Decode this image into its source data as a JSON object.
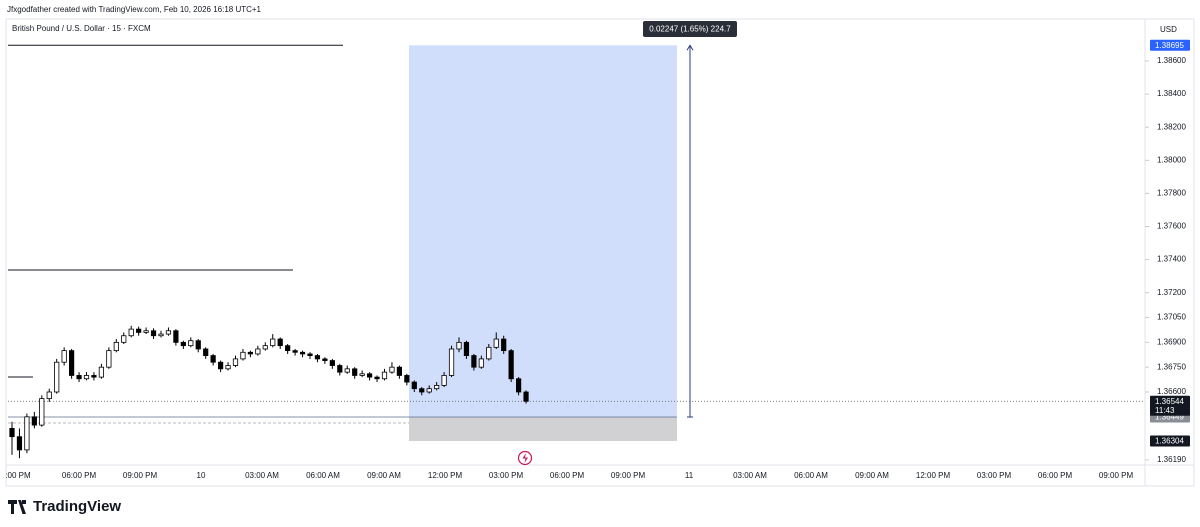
{
  "header": {
    "attribution": "Jfxgodfather created with TradingView.com, Feb 10, 2026 16:18 UTC+1"
  },
  "chart_data": {
    "type": "candlestick",
    "title": "British Pound / U.S. Dollar · 15 · FXCM",
    "currency": "USD",
    "up_color": "#ffffff",
    "down_color": "#000000",
    "x_labels": [
      ":00 PM",
      "06:00 PM",
      "09:00 PM",
      "10",
      "03:00 AM",
      "06:00 AM",
      "09:00 AM",
      "12:00 PM",
      "03:00 PM",
      "06:00 PM",
      "09:00 PM",
      "11",
      "03:00 AM",
      "06:00 AM",
      "09:00 AM",
      "12:00 PM",
      "03:00 PM",
      "06:00 PM",
      "09:00 PM"
    ],
    "ohlc": [
      [
        1.3638,
        1.3642,
        1.3622,
        1.3633
      ],
      [
        1.3633,
        1.3638,
        1.362,
        1.3625
      ],
      [
        1.3625,
        1.3647,
        1.3623,
        1.3645
      ],
      [
        1.3645,
        1.3648,
        1.3638,
        1.364
      ],
      [
        1.364,
        1.3658,
        1.3639,
        1.3656
      ],
      [
        1.3656,
        1.3662,
        1.3654,
        1.366
      ],
      [
        1.366,
        1.368,
        1.3659,
        1.3678
      ],
      [
        1.3678,
        1.3687,
        1.3676,
        1.3685
      ],
      [
        1.3685,
        1.3686,
        1.3668,
        1.367
      ],
      [
        1.367,
        1.3672,
        1.3666,
        1.3668
      ],
      [
        1.3668,
        1.3672,
        1.3667,
        1.367
      ],
      [
        1.367,
        1.3672,
        1.3667,
        1.3669
      ],
      [
        1.3669,
        1.3677,
        1.3668,
        1.3675
      ],
      [
        1.3675,
        1.3687,
        1.3674,
        1.3685
      ],
      [
        1.3685,
        1.3692,
        1.3684,
        1.369
      ],
      [
        1.369,
        1.3696,
        1.3689,
        1.3694
      ],
      [
        1.3694,
        1.37,
        1.3693,
        1.3698
      ],
      [
        1.3698,
        1.36995,
        1.3694,
        1.3696
      ],
      [
        1.3696,
        1.3699,
        1.3695,
        1.3697
      ],
      [
        1.3697,
        1.36985,
        1.3692,
        1.3694
      ],
      [
        1.3694,
        1.3697,
        1.3693,
        1.3695
      ],
      [
        1.3695,
        1.3699,
        1.3694,
        1.3697
      ],
      [
        1.3697,
        1.3698,
        1.3688,
        1.369
      ],
      [
        1.369,
        1.3691,
        1.3686,
        1.3688
      ],
      [
        1.3688,
        1.3693,
        1.3687,
        1.3691
      ],
      [
        1.3691,
        1.3692,
        1.3684,
        1.3686
      ],
      [
        1.3686,
        1.3687,
        1.368,
        1.3682
      ],
      [
        1.3682,
        1.3683,
        1.3676,
        1.3678
      ],
      [
        1.3678,
        1.3679,
        1.3672,
        1.3674
      ],
      [
        1.3674,
        1.3678,
        1.3673,
        1.3676
      ],
      [
        1.3676,
        1.3682,
        1.3675,
        1.368
      ],
      [
        1.368,
        1.3686,
        1.3679,
        1.3684
      ],
      [
        1.3684,
        1.3685,
        1.3681,
        1.3683
      ],
      [
        1.3683,
        1.3688,
        1.3682,
        1.3686
      ],
      [
        1.3686,
        1.369,
        1.3685,
        1.3688
      ],
      [
        1.3688,
        1.3695,
        1.3687,
        1.3692
      ],
      [
        1.3692,
        1.3693,
        1.3686,
        1.3688
      ],
      [
        1.3688,
        1.3689,
        1.3683,
        1.3685
      ],
      [
        1.3685,
        1.3686,
        1.3682,
        1.3684
      ],
      [
        1.3684,
        1.3685,
        1.3681,
        1.3683
      ],
      [
        1.3683,
        1.3684,
        1.368,
        1.3682
      ],
      [
        1.3682,
        1.3683,
        1.3678,
        1.368
      ],
      [
        1.368,
        1.3681,
        1.3677,
        1.3679
      ],
      [
        1.3679,
        1.368,
        1.3674,
        1.3676
      ],
      [
        1.3676,
        1.3677,
        1.367,
        1.3672
      ],
      [
        1.3672,
        1.3676,
        1.3671,
        1.3674
      ],
      [
        1.3674,
        1.3675,
        1.3668,
        1.367
      ],
      [
        1.367,
        1.3673,
        1.3669,
        1.3671
      ],
      [
        1.3671,
        1.3672,
        1.3667,
        1.3669
      ],
      [
        1.3669,
        1.367,
        1.3666,
        1.3668
      ],
      [
        1.3668,
        1.3674,
        1.3667,
        1.3672
      ],
      [
        1.3672,
        1.3678,
        1.3671,
        1.3675
      ],
      [
        1.3675,
        1.3676,
        1.3668,
        1.367
      ],
      [
        1.367,
        1.3671,
        1.3664,
        1.3666
      ],
      [
        1.3666,
        1.3667,
        1.366,
        1.3662
      ],
      [
        1.3662,
        1.3663,
        1.3658,
        1.366
      ],
      [
        1.366,
        1.3664,
        1.3659,
        1.3662
      ],
      [
        1.3662,
        1.3666,
        1.3661,
        1.3664
      ],
      [
        1.3664,
        1.3672,
        1.3663,
        1.367
      ],
      [
        1.367,
        1.3688,
        1.3669,
        1.3686
      ],
      [
        1.3686,
        1.3693,
        1.3684,
        1.369
      ],
      [
        1.369,
        1.3691,
        1.368,
        1.3682
      ],
      [
        1.3682,
        1.3683,
        1.3673,
        1.3675
      ],
      [
        1.3675,
        1.3682,
        1.3674,
        1.368
      ],
      [
        1.368,
        1.3689,
        1.3679,
        1.3687
      ],
      [
        1.3687,
        1.3696,
        1.3686,
        1.3692
      ],
      [
        1.3692,
        1.3694,
        1.3683,
        1.3685
      ],
      [
        1.3685,
        1.3686,
        1.3666,
        1.3668
      ],
      [
        1.3668,
        1.3669,
        1.3658,
        1.366
      ],
      [
        1.366,
        1.3661,
        1.3653,
        1.36544
      ]
    ],
    "ylim": [
      1.36171,
      1.38727
    ],
    "yticks": [
      {
        "value": 1.386,
        "label": "1.38600"
      },
      {
        "value": 1.384,
        "label": "1.38400"
      },
      {
        "value": 1.382,
        "label": "1.38200"
      },
      {
        "value": 1.38,
        "label": "1.38000"
      },
      {
        "value": 1.378,
        "label": "1.37800"
      },
      {
        "value": 1.376,
        "label": "1.37600"
      },
      {
        "value": 1.374,
        "label": "1.37400"
      },
      {
        "value": 1.372,
        "label": "1.37200"
      },
      {
        "value": 1.3705,
        "label": "1.37050"
      },
      {
        "value": 1.369,
        "label": "1.36900"
      },
      {
        "value": 1.3675,
        "label": "1.36750"
      },
      {
        "value": 1.366,
        "label": "1.36600"
      },
      {
        "value": 1.3619,
        "label": "1.36190"
      }
    ],
    "levels": [
      1.38695,
      1.37337,
      1.36691
    ],
    "position": {
      "target": 1.38695,
      "entry": 1.36449,
      "stop": 1.36304
    },
    "last_price": 1.36544,
    "countdown": "11:43",
    "measure_label": "0.02247 (1.65%) 224.7"
  },
  "footer": {
    "brand": "TradingView"
  }
}
